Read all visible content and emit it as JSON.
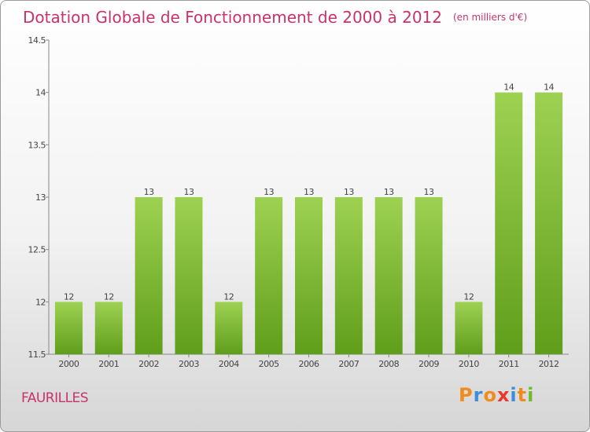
{
  "title": "Dotation Globale de Fonctionnement de 2000 à 2012",
  "unit": "(en milliers d'€)",
  "location": "FAURILLES",
  "logo": {
    "letters": [
      "P",
      "r",
      "o",
      "x",
      "i",
      "t",
      "i"
    ],
    "colors": [
      "#f08c1e",
      "#3c8fd6",
      "#f08c1e",
      "#e8382c",
      "#3c8fd6",
      "#f08c1e",
      "#6dbb2d"
    ]
  },
  "colors": {
    "title": "#c8336b",
    "bar_top": "#9ed152",
    "bar_bottom": "#5f9e1a"
  },
  "chart_data": {
    "type": "bar",
    "categories": [
      "2000",
      "2001",
      "2002",
      "2003",
      "2004",
      "2005",
      "2006",
      "2007",
      "2008",
      "2009",
      "2010",
      "2011",
      "2012"
    ],
    "values": [
      12,
      12,
      13,
      13,
      12,
      13,
      13,
      13,
      13,
      13,
      12,
      14,
      14
    ],
    "data_labels": [
      "12",
      "12",
      "13",
      "13",
      "12",
      "13",
      "13",
      "13",
      "13",
      "13",
      "12",
      "14",
      "14"
    ],
    "ylim": [
      11.5,
      14.5
    ],
    "yticks": [
      11.5,
      12,
      12.5,
      13,
      13.5,
      14,
      14.5
    ],
    "ytick_labels": [
      "11.5",
      "12",
      "12.5",
      "13",
      "13.5",
      "14",
      "14.5"
    ],
    "grid": false
  }
}
